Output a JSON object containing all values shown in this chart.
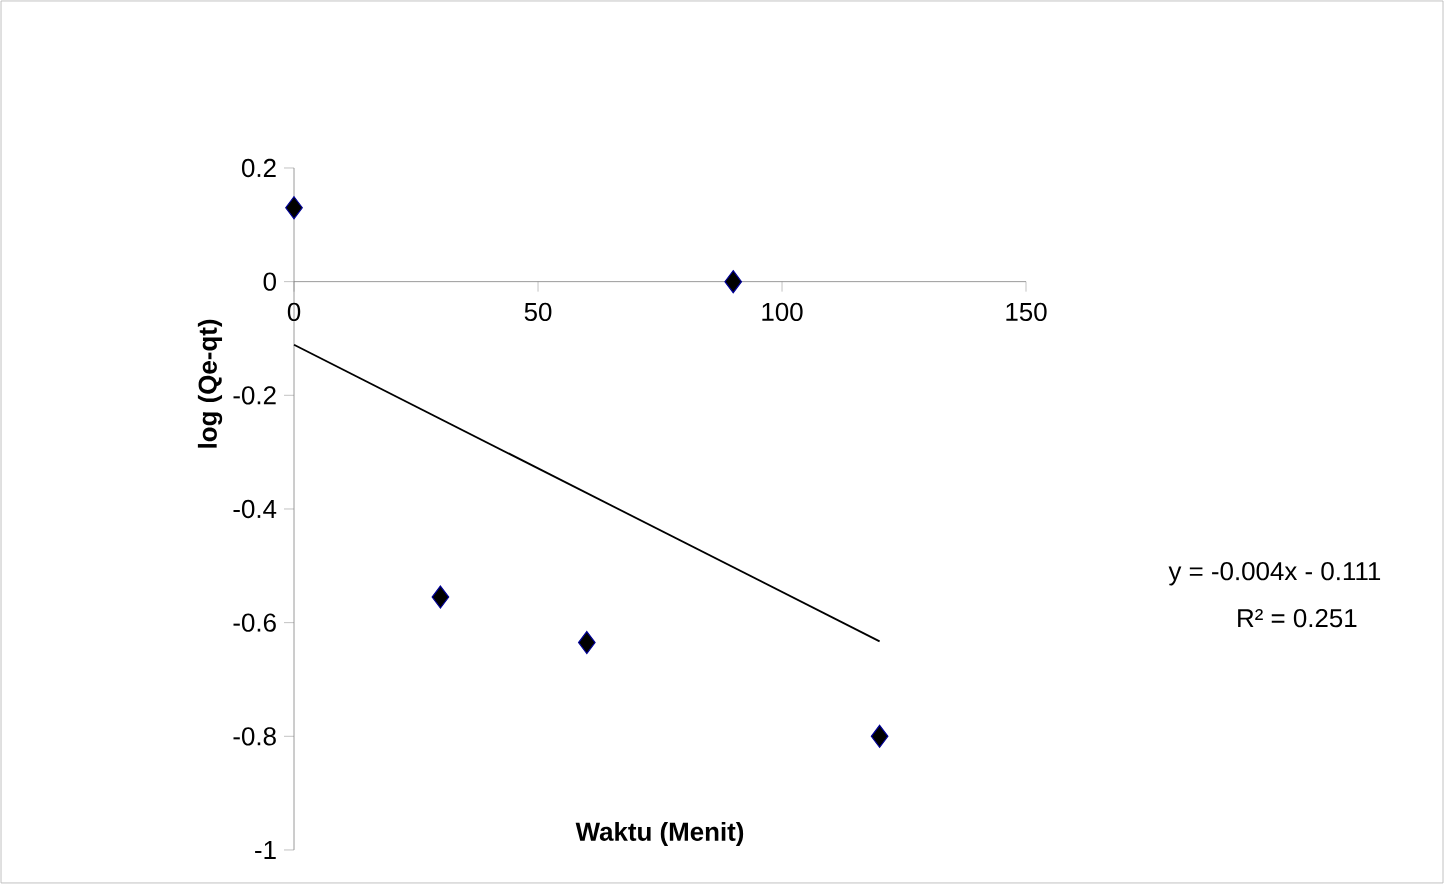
{
  "chart_data": {
    "type": "scatter",
    "xlabel": "Waktu (Menit)",
    "ylabel": "log (Qe-qt)",
    "xlim": [
      0,
      150
    ],
    "xticks": [
      0,
      50,
      100,
      150
    ],
    "ylim": [
      -1,
      0.2
    ],
    "yticks": [
      -1,
      -0.8,
      -0.6,
      -0.4,
      -0.2,
      0,
      0.2
    ],
    "grid": false,
    "series": [
      {
        "marker": "diamond",
        "color": "#000000",
        "x": [
          0,
          30,
          60,
          90,
          120
        ],
        "values": [
          0.13,
          -0.555,
          -0.635,
          0,
          -0.8
        ]
      },
      {
        "type": "line",
        "marker": "none",
        "color": "#000000",
        "x": [
          0,
          120
        ],
        "values": [
          -0.111,
          -0.633
        ]
      }
    ],
    "annotations": [
      "y = -0.004x - 0.111",
      "R² = 0.251"
    ]
  }
}
